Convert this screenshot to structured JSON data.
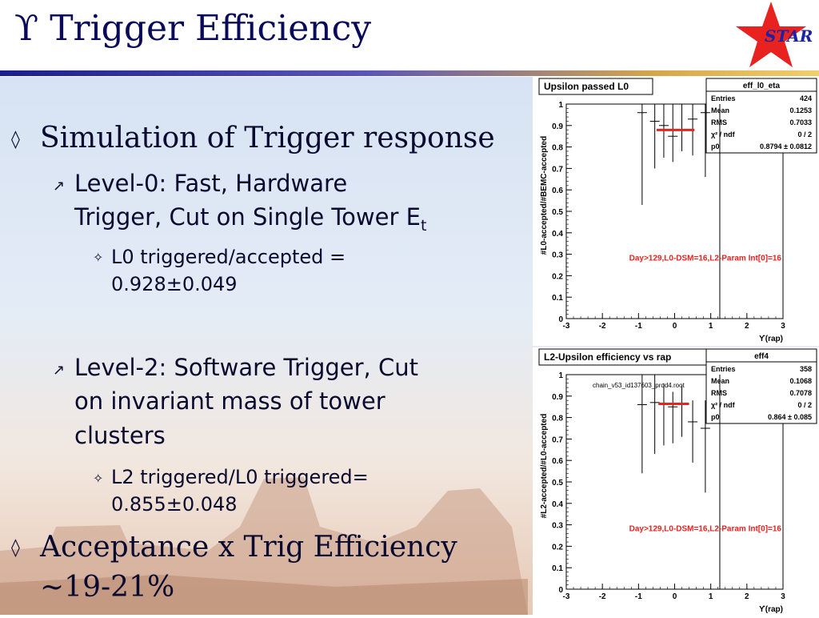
{
  "slide": {
    "title": "ϒ Trigger Efficiency",
    "logo_text": "STAR",
    "bullets": [
      {
        "text": "Simulation of Trigger response"
      },
      {
        "text_line1": "Level-0: Fast, Hardware",
        "text_line2": "Trigger, Cut on Single Tower E",
        "sub": "t"
      },
      {
        "text_line1": "L0 triggered/accepted =",
        "text_line2": "0.928±0.049"
      },
      {
        "text_line1": "Level-2: Software Trigger, Cut",
        "text_line2": "on invariant mass of tower",
        "text_line3": "clusters"
      },
      {
        "text_line1": "L2 triggered/L0 triggered=",
        "text_line2": "0.855±0.048"
      },
      {
        "text_line1": "Acceptance x Trig Efficiency",
        "text_line2": "~19-21%"
      }
    ],
    "colors": {
      "title": "#0a0a5a",
      "text": "#0a0a30",
      "accent_red": "#e8221f"
    }
  },
  "chart_data": [
    {
      "type": "scatter",
      "title": "Upsilon passed L0",
      "ylabel": "#L0-accepted/#BEMC-accepted",
      "xlabel": "ϒ(rap)",
      "xlim": [
        -3,
        3
      ],
      "ylim": [
        0,
        1
      ],
      "xticks": [
        -3,
        -2,
        -1,
        0,
        1,
        2,
        3
      ],
      "yticks": [
        0,
        0.1,
        0.2,
        0.3,
        0.4,
        0.5,
        0.6,
        0.7,
        0.8,
        0.9,
        1
      ],
      "x": [
        -0.9,
        -0.55,
        -0.3,
        -0.05,
        0.2,
        0.5,
        0.85
      ],
      "y": [
        0.96,
        0.92,
        0.9,
        0.85,
        0.88,
        0.93,
        0.96
      ],
      "yerr_low": [
        0.43,
        0.22,
        0.15,
        0.12,
        0.1,
        0.17,
        0.3
      ],
      "yerr_high": [
        0.04,
        0.08,
        0.1,
        0.15,
        0.12,
        0.07,
        0.04
      ],
      "fit": {
        "x_from": -0.5,
        "x_to": 0.55,
        "y": 0.8794
      },
      "stats": {
        "header": "eff_l0_eta",
        "rows": [
          [
            "Entries",
            "424"
          ],
          [
            "Mean",
            "0.1253"
          ],
          [
            "RMS",
            "0.7033"
          ],
          [
            "χ² / ndf",
            "0 / 2"
          ],
          [
            "p0",
            "0.8794 ± 0.0812"
          ]
        ]
      },
      "annotation": "Day>129,L0-DSM=16,L2-Param Int[0]=16"
    },
    {
      "type": "scatter",
      "title": "L2-Upsilon efficiency vs rap",
      "subtitle": "chain_v53_id137603_prod4.root",
      "ylabel": "#L2-accepted/#L0-accepted",
      "xlabel": "ϒ(rap)",
      "xlim": [
        -3,
        3
      ],
      "ylim": [
        0,
        1
      ],
      "xticks": [
        -3,
        -2,
        -1,
        0,
        1,
        2,
        3
      ],
      "yticks": [
        0,
        0.1,
        0.2,
        0.3,
        0.4,
        0.5,
        0.6,
        0.7,
        0.8,
        0.9,
        1
      ],
      "x": [
        -0.9,
        -0.55,
        -0.3,
        -0.05,
        0.2,
        0.5,
        0.85
      ],
      "y": [
        0.86,
        0.87,
        0.86,
        0.85,
        0.86,
        0.78,
        0.75
      ],
      "yerr_low": [
        0.32,
        0.24,
        0.19,
        0.17,
        0.15,
        0.19,
        0.3
      ],
      "yerr_high": [
        0.14,
        0.13,
        0.1,
        0.07,
        0.09,
        0.1,
        0.13
      ],
      "fit": {
        "x_from": -0.45,
        "x_to": 0.4,
        "y": 0.864
      },
      "stats": {
        "header": "eff4",
        "rows": [
          [
            "Entries",
            "358"
          ],
          [
            "Mean",
            "0.1068"
          ],
          [
            "RMS",
            "0.7078"
          ],
          [
            "χ² / ndf",
            "0 / 2"
          ],
          [
            "p0",
            "0.864 ± 0.085"
          ]
        ]
      },
      "annotation": "Day>129,L0-DSM=16,L2-Param Int[0]=16"
    }
  ]
}
